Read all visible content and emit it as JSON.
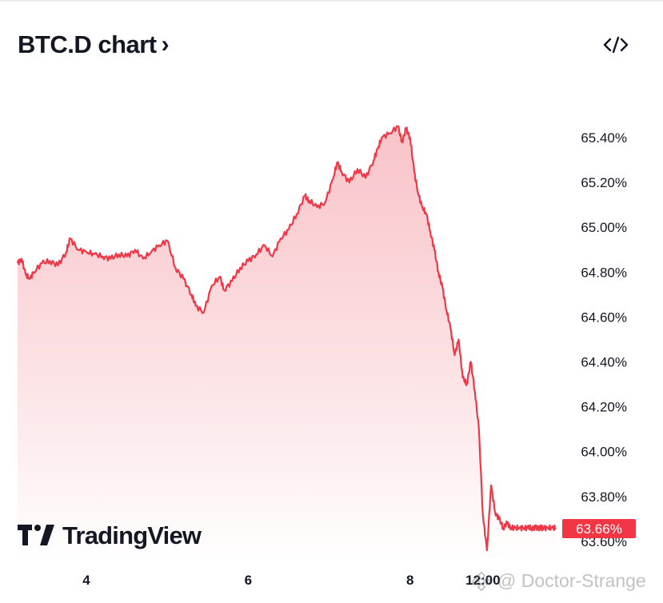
{
  "header": {
    "title": "BTC.D chart",
    "chevron": "›",
    "embed_icon": "code-embed-icon"
  },
  "chart_data": {
    "type": "area",
    "title": "BTC.D chart",
    "xlabel": "",
    "ylabel": "",
    "ylim": [
      63.55,
      65.6
    ],
    "x_ticks": [
      {
        "label": "4",
        "pos": 4
      },
      {
        "label": "6",
        "pos": 6
      },
      {
        "label": "8",
        "pos": 8
      },
      {
        "label": "12:00",
        "pos": 8.9
      }
    ],
    "xlim": [
      3.15,
      9.85
    ],
    "y_ticks": [
      "65.40%",
      "65.20%",
      "65.00%",
      "64.80%",
      "64.60%",
      "64.40%",
      "64.20%",
      "64.00%",
      "63.80%",
      "63.60%"
    ],
    "y_tick_values": [
      65.4,
      65.2,
      65.0,
      64.8,
      64.6,
      64.4,
      64.2,
      64.0,
      63.8,
      63.6
    ],
    "grid": false,
    "last_value_label": "63.66%",
    "colors": {
      "line": "#f23645",
      "fill_top": "#f7b9bf",
      "fill_bottom": "#ffffff",
      "label_bg": "#f23645"
    },
    "x": [
      3.15,
      3.2,
      3.25,
      3.3,
      3.35,
      3.45,
      3.55,
      3.65,
      3.75,
      3.8,
      3.9,
      4.0,
      4.1,
      4.2,
      4.3,
      4.4,
      4.5,
      4.6,
      4.7,
      4.8,
      4.9,
      5.0,
      5.1,
      5.2,
      5.3,
      5.35,
      5.45,
      5.55,
      5.65,
      5.7,
      5.8,
      5.9,
      6.0,
      6.1,
      6.2,
      6.3,
      6.4,
      6.5,
      6.6,
      6.7,
      6.75,
      6.85,
      6.95,
      7.05,
      7.1,
      7.15,
      7.25,
      7.35,
      7.45,
      7.55,
      7.6,
      7.65,
      7.75,
      7.85,
      7.9,
      7.95,
      8.0,
      8.05,
      8.1,
      8.15,
      8.2,
      8.25,
      8.3,
      8.35,
      8.4,
      8.45,
      8.5,
      8.55,
      8.6,
      8.65,
      8.7,
      8.75,
      8.8,
      8.85,
      8.9,
      8.95,
      9.0,
      9.05,
      9.1,
      9.15,
      9.2,
      9.25,
      9.3,
      9.35,
      9.4,
      9.45,
      9.5,
      9.55,
      9.6,
      9.62,
      9.65,
      9.7,
      9.75,
      9.8
    ],
    "values": [
      64.84,
      64.86,
      64.79,
      64.77,
      64.8,
      64.84,
      64.85,
      64.83,
      64.89,
      64.95,
      64.9,
      64.89,
      64.88,
      64.87,
      64.86,
      64.88,
      64.87,
      64.9,
      64.86,
      64.89,
      64.92,
      64.94,
      64.82,
      64.77,
      64.7,
      64.65,
      64.62,
      64.74,
      64.78,
      64.72,
      64.76,
      64.82,
      64.85,
      64.88,
      64.92,
      64.87,
      64.95,
      64.99,
      65.06,
      65.14,
      65.12,
      65.09,
      65.11,
      65.22,
      65.29,
      65.25,
      65.2,
      65.26,
      65.22,
      65.3,
      65.35,
      65.4,
      65.42,
      65.45,
      65.38,
      65.44,
      65.4,
      65.25,
      65.15,
      65.09,
      65.06,
      64.98,
      64.9,
      64.8,
      64.73,
      64.63,
      64.55,
      64.43,
      64.5,
      64.33,
      64.3,
      64.4,
      64.27,
      64.1,
      63.71,
      63.56,
      63.85,
      63.73,
      63.7,
      63.66,
      63.68,
      63.66,
      63.66,
      63.66,
      63.66,
      63.66,
      63.66,
      63.66,
      63.66,
      63.66,
      63.66,
      63.66,
      63.66,
      63.66
    ]
  },
  "branding": {
    "logo_icon": "tradingview-logo-icon",
    "logo_text": "TradingView"
  },
  "watermark": {
    "icon": "binance-square-icon",
    "text": "@ Doctor-Strange"
  }
}
